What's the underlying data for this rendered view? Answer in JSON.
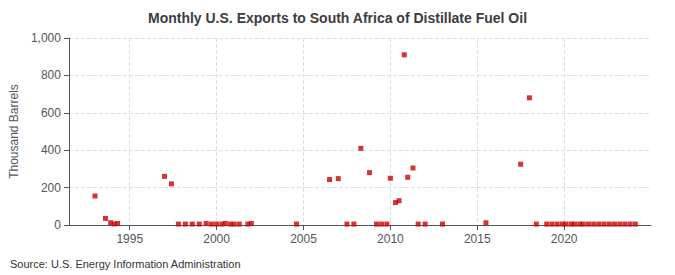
{
  "chart_data": {
    "type": "scatter",
    "title": "Monthly U.S. Exports to South Africa of Distillate Fuel Oil",
    "y_label": "Thousand Barrels",
    "annotations": [
      "Source: U.S. Energy Information Administration"
    ],
    "color": "#cc0000",
    "marker": "square",
    "grid": true,
    "xlim": [
      1991.5,
      2025.0
    ],
    "xticks": [
      1995,
      2000,
      2005,
      2010,
      2015,
      2020
    ],
    "ylim": [
      0,
      1000
    ],
    "yticks": [
      0,
      200,
      400,
      600,
      800,
      {
        "value": 1000,
        "label": "1,000"
      }
    ],
    "x": [
      1993.0,
      1993.6,
      1993.9,
      1994.1,
      1994.3,
      1997.0,
      1997.4,
      1997.8,
      1998.2,
      1998.6,
      1999.0,
      1999.4,
      1999.7,
      2000.0,
      2000.3,
      2000.5,
      2000.8,
      2001.0,
      2001.3,
      2001.8,
      2002.0,
      2004.6,
      2006.5,
      2007.0,
      2007.5,
      2007.9,
      2008.3,
      2008.8,
      2009.2,
      2009.5,
      2009.8,
      2010.0,
      2010.3,
      2010.5,
      2010.8,
      2011.0,
      2011.3,
      2011.6,
      2012.0,
      2013.0,
      2015.5,
      2017.5,
      2018.0,
      2018.4,
      2019.0,
      2019.3,
      2019.6,
      2019.9,
      2020.1,
      2020.4,
      2020.6,
      2020.9,
      2021.1,
      2021.4,
      2021.7,
      2022.0,
      2022.3,
      2022.6,
      2022.9,
      2023.2,
      2023.5,
      2023.8,
      2024.1
    ],
    "values": [
      155,
      35,
      12,
      6,
      8,
      260,
      220,
      5,
      5,
      5,
      5,
      8,
      5,
      5,
      5,
      8,
      5,
      5,
      5,
      5,
      8,
      5,
      243,
      248,
      5,
      5,
      410,
      280,
      5,
      5,
      5,
      250,
      120,
      130,
      910,
      255,
      305,
      5,
      5,
      5,
      12,
      325,
      680,
      5,
      5,
      5,
      5,
      5,
      5,
      5,
      5,
      5,
      5,
      5,
      5,
      5,
      5,
      5,
      5,
      5,
      5,
      5,
      5
    ]
  }
}
